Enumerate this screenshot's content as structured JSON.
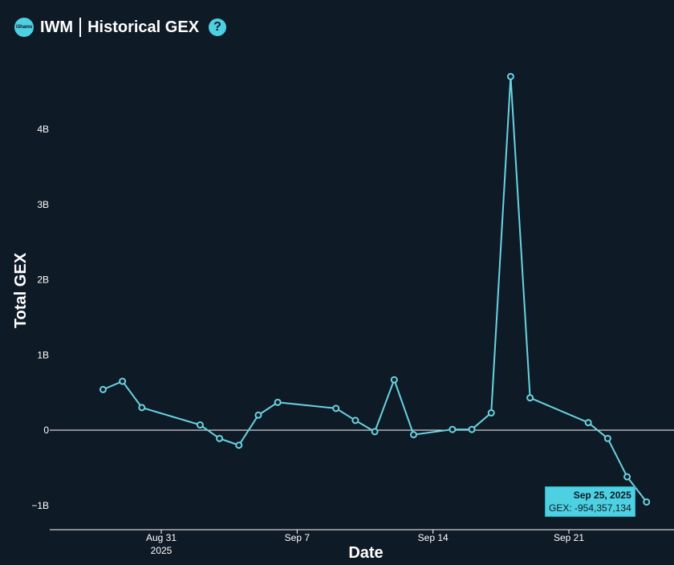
{
  "header": {
    "logo_text": "iShares",
    "ticker": "IWM",
    "title": "Historical GEX",
    "help_icon": "question-circle-icon"
  },
  "colors": {
    "background": "#0f1a27",
    "line": "#6ad3e0",
    "accent": "#4dd0e1",
    "text": "#ffffff"
  },
  "chart_data": {
    "type": "line",
    "title": "",
    "xlabel": "Date",
    "ylabel": "Total GEX",
    "y_ticks": [
      {
        "value": -1000000000,
        "label": "−1B"
      },
      {
        "value": 0,
        "label": "0"
      },
      {
        "value": 1000000000,
        "label": "1B"
      },
      {
        "value": 2000000000,
        "label": "2B"
      },
      {
        "value": 3000000000,
        "label": "3B"
      },
      {
        "value": 4000000000,
        "label": "4B"
      }
    ],
    "x_ticks": [
      {
        "date": "2025-08-31",
        "label": "Aug 31",
        "sublabel": "2025"
      },
      {
        "date": "2025-09-07",
        "label": "Sep 7",
        "sublabel": ""
      },
      {
        "date": "2025-09-14",
        "label": "Sep 14",
        "sublabel": ""
      },
      {
        "date": "2025-09-21",
        "label": "Sep 21",
        "sublabel": ""
      }
    ],
    "xlim": [
      "2025-08-27",
      "2025-09-27"
    ],
    "ylim": [
      -1300000000,
      4900000000
    ],
    "zero_line": true,
    "grid": false,
    "series": [
      {
        "points": [
          {
            "date": "2025-08-28",
            "y": 540000000
          },
          {
            "date": "2025-08-29",
            "y": 650000000
          },
          {
            "date": "2025-08-30",
            "y": 300000000
          },
          {
            "date": "2025-09-02",
            "y": 70000000
          },
          {
            "date": "2025-09-03",
            "y": -110000000
          },
          {
            "date": "2025-09-04",
            "y": -200000000
          },
          {
            "date": "2025-09-05",
            "y": 200000000
          },
          {
            "date": "2025-09-06",
            "y": 370000000
          },
          {
            "date": "2025-09-09",
            "y": 290000000
          },
          {
            "date": "2025-09-10",
            "y": 130000000
          },
          {
            "date": "2025-09-11",
            "y": -20000000
          },
          {
            "date": "2025-09-12",
            "y": 670000000
          },
          {
            "date": "2025-09-13",
            "y": -60000000
          },
          {
            "date": "2025-09-15",
            "y": 10000000
          },
          {
            "date": "2025-09-16",
            "y": 10000000
          },
          {
            "date": "2025-09-17",
            "y": 230000000
          },
          {
            "date": "2025-09-18",
            "y": 4700000000
          },
          {
            "date": "2025-09-19",
            "y": 430000000
          },
          {
            "date": "2025-09-22",
            "y": 100000000
          },
          {
            "date": "2025-09-23",
            "y": -110000000
          },
          {
            "date": "2025-09-24",
            "y": -620000000
          },
          {
            "date": "2025-09-25",
            "y": -954357134
          }
        ]
      }
    ]
  },
  "tooltip": {
    "date": "Sep 25, 2025",
    "value_text": "GEX: -954,357,134"
  }
}
